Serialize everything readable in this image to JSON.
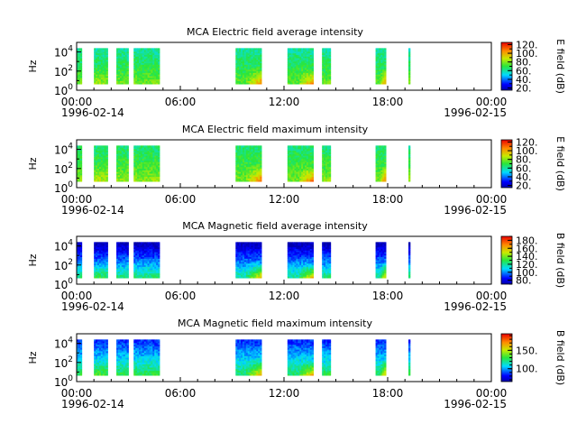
{
  "chart_data": {
    "type": "heatmap",
    "x_axis": {
      "range": [
        "1996-02-14T00:00",
        "1996-02-15T00:00"
      ],
      "major_tick_labels": [
        "00:00",
        "06:00",
        "12:00",
        "18:00",
        "00:00"
      ],
      "date_labels": [
        "1996-02-14",
        "1996-02-15"
      ],
      "minor_tick_interval_hours": 1
    },
    "y_axis": {
      "label": "Hz",
      "scale": "log",
      "range": [
        1,
        100000
      ],
      "tick_labels": [
        "10^0",
        "10^2",
        "10^4"
      ]
    },
    "data_coverage_hours": [
      [
        0.0,
        0.3
      ],
      [
        1.0,
        1.8
      ],
      [
        2.3,
        3.0
      ],
      [
        3.3,
        4.8
      ],
      [
        9.2,
        10.7
      ],
      [
        12.2,
        13.7
      ],
      [
        14.2,
        14.7
      ],
      [
        17.3,
        17.9
      ],
      [
        19.2,
        19.3
      ]
    ],
    "panels": [
      {
        "title": "MCA  Electric field average intensity",
        "colorbar_label": "E field (dB)",
        "colorbar_range": [
          15,
          125
        ],
        "colorbar_ticks": [
          20,
          40,
          60,
          80,
          100,
          120
        ],
        "colorbar_tick_labels": [
          "20.",
          "40.",
          "60.",
          "80.",
          "100.",
          "120."
        ],
        "colorbar_minor_interval": 10,
        "intensity_profile": {
          "high_freq": 60,
          "low_freq": 75,
          "burst": 105
        }
      },
      {
        "title": "MCA  Electric field maximum intensity",
        "colorbar_label": "E field (dB)",
        "colorbar_range": [
          15,
          125
        ],
        "colorbar_ticks": [
          20,
          40,
          60,
          80,
          100,
          120
        ],
        "colorbar_tick_labels": [
          "20.",
          "40.",
          "60.",
          "80.",
          "100.",
          "120."
        ],
        "colorbar_minor_interval": 10,
        "intensity_profile": {
          "high_freq": 64,
          "low_freq": 78,
          "burst": 110
        }
      },
      {
        "title": "MCA  Magnetic field average intensity",
        "colorbar_label": "B field (dB)",
        "colorbar_range": [
          70,
          190
        ],
        "colorbar_ticks": [
          80,
          100,
          120,
          140,
          160,
          180
        ],
        "colorbar_tick_labels": [
          "80.",
          "100.",
          "120.",
          "140.",
          "160.",
          "180."
        ],
        "colorbar_minor_interval": 10,
        "intensity_profile": {
          "high_freq": 72,
          "low_freq": 120,
          "burst": 160
        }
      },
      {
        "title": "MCA  Magnetic field maximum intensity",
        "colorbar_label": "B field (dB)",
        "colorbar_range": [
          65,
          195
        ],
        "colorbar_ticks": [
          100,
          150
        ],
        "colorbar_tick_labels": [
          "100.",
          "150."
        ],
        "colorbar_minor_interval": 10,
        "intensity_profile": {
          "high_freq": 85,
          "low_freq": 125,
          "burst": 165
        }
      }
    ]
  }
}
